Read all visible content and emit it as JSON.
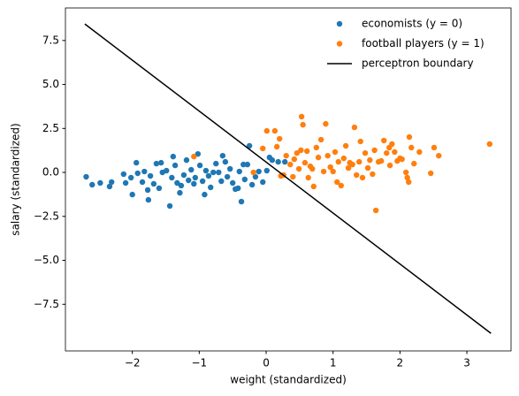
{
  "chart_data": {
    "type": "scatter",
    "x_label": "weight (standardized)",
    "y_label": "salary (standardized)",
    "xlim": [
      -3.0,
      3.66
    ],
    "ylim": [
      -10.15,
      9.35
    ],
    "xticks": [
      {
        "value": -2,
        "label": "−2"
      },
      {
        "value": -1,
        "label": "−1"
      },
      0,
      1,
      2,
      3
    ],
    "yticks": [
      {
        "value": -7.5,
        "label": "−7.5"
      },
      {
        "value": -5,
        "label": "−5.0"
      },
      {
        "value": -2.5,
        "label": "−2.5"
      },
      {
        "value": 0,
        "label": "0.0"
      },
      2.5,
      {
        "value": 5,
        "label": "5.0"
      },
      7.5
    ],
    "legend_location": "upper right",
    "series": [
      {
        "name": "economists (y = 0)",
        "type": "scatter",
        "color": "#1f77b4",
        "x": [
          -2.69,
          -2.6,
          -2.48,
          -2.34,
          -2.31,
          -2.13,
          -2.1,
          -2.02,
          -2.0,
          -1.94,
          -1.92,
          -1.85,
          -1.82,
          -1.77,
          -1.76,
          -1.73,
          -1.68,
          -1.64,
          -1.6,
          -1.57,
          -1.55,
          -1.49,
          -1.44,
          -1.41,
          -1.39,
          -1.36,
          -1.33,
          -1.29,
          -1.27,
          -1.23,
          -1.19,
          -1.16,
          -1.12,
          -1.08,
          -1.06,
          -1.02,
          -0.99,
          -0.95,
          -0.92,
          -0.9,
          -0.86,
          -0.83,
          -0.79,
          -0.75,
          -0.71,
          -0.67,
          -0.65,
          -0.61,
          -0.58,
          -0.54,
          -0.5,
          -0.46,
          -0.42,
          -0.4,
          -0.37,
          -0.34,
          -0.32,
          -0.28,
          -0.25,
          -0.21,
          -0.16,
          -0.11,
          -0.05,
          0.01,
          0.09,
          0.18,
          0.28,
          0.05
        ],
        "y": [
          -0.25,
          -0.7,
          -0.6,
          -0.8,
          -0.55,
          -0.1,
          -0.6,
          -0.3,
          -1.26,
          0.55,
          -0.05,
          -0.55,
          0.05,
          -1.0,
          -1.56,
          -0.2,
          -0.65,
          0.5,
          -0.9,
          0.55,
          0.0,
          0.1,
          -1.91,
          -0.3,
          0.9,
          0.4,
          -0.6,
          -1.16,
          -0.75,
          -0.15,
          0.7,
          -0.45,
          0.15,
          -0.65,
          -0.3,
          1.05,
          0.4,
          -0.5,
          -1.26,
          0.1,
          -0.2,
          -0.85,
          0.0,
          0.5,
          0.0,
          -0.5,
          0.95,
          0.6,
          -0.25,
          0.2,
          -0.6,
          -0.95,
          -0.9,
          0.05,
          -1.66,
          0.45,
          -0.4,
          0.45,
          1.51,
          -0.7,
          -0.25,
          0.05,
          -0.55,
          0.1,
          0.7,
          0.6,
          0.6,
          0.85
        ]
      },
      {
        "name": "football players (y = 1)",
        "type": "scatter",
        "color": "#ff7f0e",
        "x": [
          -1.08,
          -0.19,
          -0.05,
          0.01,
          0.13,
          0.16,
          0.2,
          0.22,
          0.26,
          0.3,
          0.36,
          0.4,
          0.42,
          0.46,
          0.49,
          0.52,
          0.53,
          0.55,
          0.58,
          0.61,
          0.63,
          0.66,
          0.69,
          0.71,
          0.75,
          0.78,
          0.82,
          0.86,
          0.89,
          0.92,
          0.96,
          1.0,
          1.03,
          1.06,
          1.08,
          1.12,
          1.16,
          1.19,
          1.23,
          1.25,
          1.29,
          1.32,
          1.35,
          1.39,
          1.41,
          1.44,
          1.48,
          1.52,
          1.55,
          1.59,
          1.62,
          1.64,
          1.68,
          1.72,
          1.76,
          1.8,
          1.84,
          1.85,
          1.88,
          1.92,
          1.96,
          2.0,
          2.03,
          2.09,
          2.11,
          2.13,
          2.14,
          2.17,
          2.21,
          2.29,
          2.46,
          2.51,
          2.58,
          3.34
        ],
        "y": [
          0.9,
          0.0,
          1.36,
          2.36,
          2.36,
          1.46,
          1.91,
          -0.2,
          -0.15,
          0.95,
          0.45,
          -0.25,
          0.75,
          1.1,
          0.2,
          1.26,
          3.17,
          2.71,
          0.55,
          1.21,
          -0.3,
          0.35,
          0.2,
          -0.8,
          1.41,
          0.85,
          1.86,
          0.05,
          2.76,
          0.95,
          0.3,
          0.05,
          1.16,
          -0.55,
          0.6,
          -0.75,
          0.8,
          1.51,
          0.25,
          0.55,
          0.45,
          2.56,
          -0.15,
          0.6,
          1.76,
          -0.3,
          1.1,
          0.25,
          0.7,
          -0.1,
          1.26,
          -2.16,
          0.6,
          0.65,
          1.81,
          1.1,
          1.41,
          0.4,
          1.61,
          1.16,
          0.65,
          0.8,
          0.75,
          0.0,
          -0.3,
          -0.55,
          2.01,
          1.41,
          0.5,
          1.16,
          -0.05,
          1.41,
          0.95,
          1.61
        ]
      },
      {
        "name": "perceptron boundary",
        "type": "line",
        "color": "#000000",
        "x": [
          -2.71,
          3.36
        ],
        "y": [
          8.44,
          -9.15
        ]
      }
    ]
  }
}
